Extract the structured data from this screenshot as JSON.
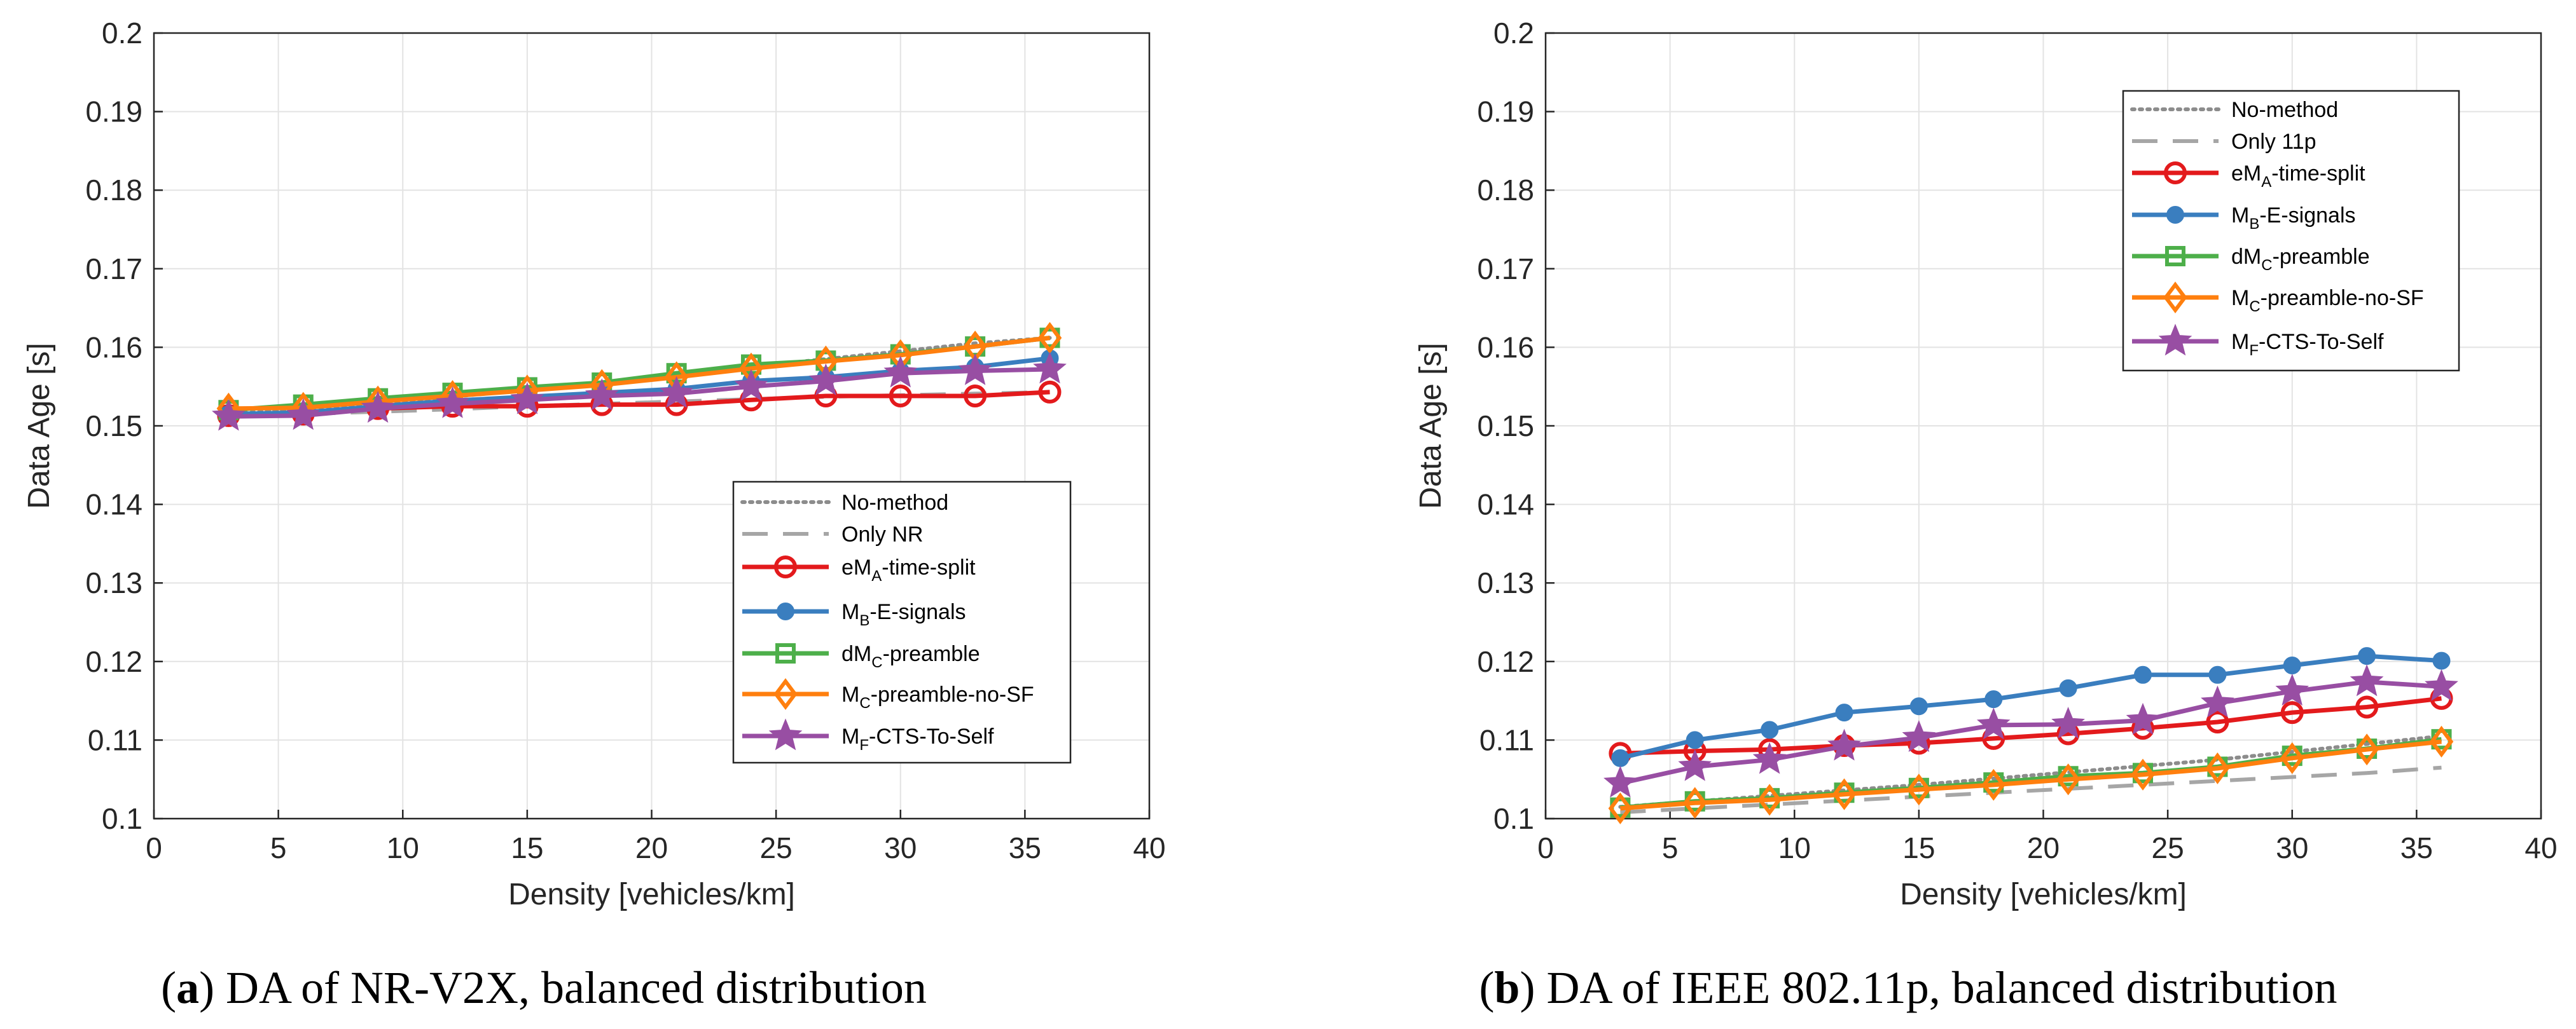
{
  "chart_data": [
    {
      "type": "line",
      "ylabel": "Data Age [s]",
      "xlabel": "Density [vehicles/km]",
      "xlim": [
        0,
        40
      ],
      "ylim": [
        0.1,
        0.2
      ],
      "xticks": [
        "0",
        "5",
        "10",
        "15",
        "20",
        "25",
        "30",
        "35",
        "40"
      ],
      "yticks": [
        "0.1",
        "0.11",
        "0.12",
        "0.13",
        "0.14",
        "0.15",
        "0.16",
        "0.17",
        "0.18",
        "0.19",
        "0.2"
      ],
      "grid": true,
      "legend_position": "lower-right",
      "caption": {
        "letter": "a",
        "text": ") DA of NR-V2X, balanced distribution"
      },
      "x": [
        3,
        6,
        9,
        12,
        15,
        18,
        21,
        24,
        27,
        30,
        33,
        36
      ],
      "series": [
        {
          "key": "nomethod",
          "name": "No-method",
          "legend": [
            "No-method"
          ],
          "color": "#8c8c8c",
          "style": "dotted",
          "marker": "none",
          "values": [
            0.1515,
            0.1522,
            0.1529,
            0.1537,
            0.1546,
            0.1555,
            0.1565,
            0.1575,
            0.1585,
            0.1595,
            0.1605,
            0.1612
          ]
        },
        {
          "key": "only",
          "name": "Only NR",
          "legend": [
            "Only NR"
          ],
          "color": "#a6a6a6",
          "style": "dashed",
          "marker": "none",
          "values": [
            0.1512,
            0.1515,
            0.1518,
            0.1521,
            0.1525,
            0.1528,
            0.1531,
            0.1534,
            0.1537,
            0.1539,
            0.1541,
            0.1543
          ]
        },
        {
          "key": "ema",
          "name": "eMA-time-split",
          "legend": [
            "eM",
            "A",
            "-time-split"
          ],
          "color": "#e31a1c",
          "style": "solid",
          "marker": "circle-open",
          "values": [
            0.1513,
            0.1515,
            0.1522,
            0.1525,
            0.1525,
            0.1527,
            0.1527,
            0.1533,
            0.1538,
            0.1538,
            0.1538,
            0.1543
          ]
        },
        {
          "key": "mb",
          "name": "MB-E-signals",
          "legend": [
            "M",
            "B",
            "-E-signals"
          ],
          "color": "#3a7ebf",
          "style": "solid",
          "marker": "circle-filled",
          "values": [
            0.1515,
            0.1517,
            0.1525,
            0.1532,
            0.1537,
            0.1542,
            0.1547,
            0.1557,
            0.1562,
            0.157,
            0.1575,
            0.1586
          ]
        },
        {
          "key": "dmc",
          "name": "dMC-preamble",
          "legend": [
            "dM",
            "C",
            "-preamble"
          ],
          "color": "#4daf4a",
          "style": "solid",
          "marker": "square",
          "values": [
            0.152,
            0.1527,
            0.1535,
            0.1542,
            0.1549,
            0.1555,
            0.1567,
            0.1578,
            0.1583,
            0.1591,
            0.1601,
            0.1612
          ]
        },
        {
          "key": "mc",
          "name": "MC-preamble-no-SF",
          "legend": [
            "M",
            "C",
            "-preamble-no-SF"
          ],
          "color": "#ff7f0e",
          "style": "solid",
          "marker": "diamond",
          "values": [
            0.1522,
            0.1523,
            0.1531,
            0.1538,
            0.1545,
            0.1552,
            0.1562,
            0.1573,
            0.1582,
            0.159,
            0.1601,
            0.1612
          ]
        },
        {
          "key": "mf",
          "name": "MF-CTS-To-Self",
          "legend": [
            "M",
            "F",
            "-CTS-To-Self"
          ],
          "color": "#984ea3",
          "style": "solid",
          "marker": "star",
          "values": [
            0.1512,
            0.1513,
            0.1522,
            0.1528,
            0.1533,
            0.1538,
            0.1541,
            0.155,
            0.1557,
            0.1567,
            0.157,
            0.1572
          ]
        }
      ]
    },
    {
      "type": "line",
      "ylabel": "Data Age [s]",
      "xlabel": "Density [vehicles/km]",
      "xlim": [
        0,
        40
      ],
      "ylim": [
        0.1,
        0.2
      ],
      "xticks": [
        "0",
        "5",
        "10",
        "15",
        "20",
        "25",
        "30",
        "35",
        "40"
      ],
      "yticks": [
        "0.1",
        "0.11",
        "0.12",
        "0.13",
        "0.14",
        "0.15",
        "0.16",
        "0.17",
        "0.18",
        "0.19",
        "0.2"
      ],
      "grid": true,
      "legend_position": "upper-right",
      "caption": {
        "letter": "b",
        "text": ") DA of IEEE 802.11p, balanced distribution"
      },
      "x": [
        3,
        6,
        9,
        12,
        15,
        18,
        21,
        24,
        27,
        30,
        33,
        36
      ],
      "series": [
        {
          "key": "nomethod",
          "name": "No-method",
          "legend": [
            "No-method"
          ],
          "color": "#8c8c8c",
          "style": "dotted",
          "marker": "none",
          "values": [
            0.1015,
            0.1022,
            0.1029,
            0.1036,
            0.1043,
            0.1051,
            0.1059,
            0.1067,
            0.1075,
            0.1085,
            0.1095,
            0.1105
          ]
        },
        {
          "key": "only",
          "name": "Only 11p",
          "legend": [
            "Only 11p"
          ],
          "color": "#a6a6a6",
          "style": "dashed",
          "marker": "none",
          "values": [
            0.1008,
            0.1013,
            0.1018,
            0.1023,
            0.1028,
            0.1033,
            0.1038,
            0.1043,
            0.1048,
            0.1053,
            0.1058,
            0.1065
          ]
        },
        {
          "key": "ema",
          "name": "eMA-time-split",
          "legend": [
            "eM",
            "A",
            "-time-split"
          ],
          "color": "#e31a1c",
          "style": "solid",
          "marker": "circle-open",
          "values": [
            0.1083,
            0.1086,
            0.1088,
            0.1093,
            0.1096,
            0.1102,
            0.1108,
            0.1115,
            0.1123,
            0.1135,
            0.1142,
            0.1153
          ]
        },
        {
          "key": "mb",
          "name": "MB-E-signals",
          "legend": [
            "M",
            "B",
            "-E-signals"
          ],
          "color": "#3a7ebf",
          "style": "solid",
          "marker": "circle-filled",
          "values": [
            0.1077,
            0.11,
            0.1113,
            0.1135,
            0.1143,
            0.1152,
            0.1166,
            0.1183,
            0.1183,
            0.1195,
            0.1207,
            0.1201
          ]
        },
        {
          "key": "dmc",
          "name": "dMC-preamble",
          "legend": [
            "dM",
            "C",
            "-preamble"
          ],
          "color": "#4daf4a",
          "style": "solid",
          "marker": "square",
          "values": [
            0.1014,
            0.1022,
            0.1026,
            0.1033,
            0.1039,
            0.1046,
            0.1054,
            0.1058,
            0.1066,
            0.108,
            0.1089,
            0.1101
          ]
        },
        {
          "key": "mc",
          "name": "MC-preamble-no-SF",
          "legend": [
            "M",
            "C",
            "-preamble-no-SF"
          ],
          "color": "#ff7f0e",
          "style": "solid",
          "marker": "diamond",
          "values": [
            0.1013,
            0.102,
            0.1024,
            0.1031,
            0.1037,
            0.1043,
            0.105,
            0.1056,
            0.1064,
            0.1077,
            0.1088,
            0.1098
          ]
        },
        {
          "key": "mf",
          "name": "MF-CTS-To-Self",
          "legend": [
            "M",
            "F",
            "-CTS-To-Self"
          ],
          "color": "#984ea3",
          "style": "solid",
          "marker": "star",
          "values": [
            0.1045,
            0.1066,
            0.1075,
            0.1092,
            0.1103,
            0.1119,
            0.112,
            0.1125,
            0.1147,
            0.1162,
            0.1174,
            0.1168
          ]
        }
      ]
    }
  ]
}
